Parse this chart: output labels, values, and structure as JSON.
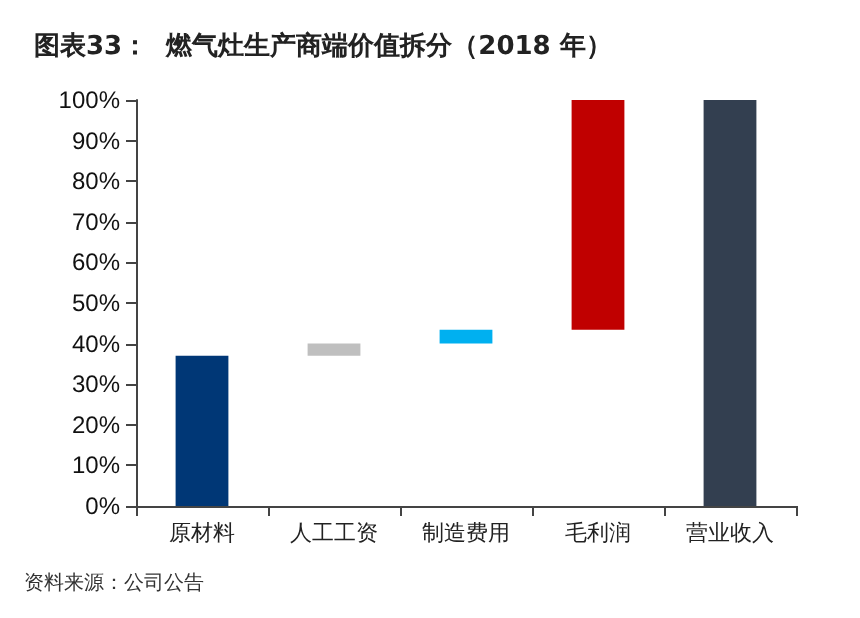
{
  "chart_data": {
    "type": "bar",
    "title": "图表33：  燃气灶生产商端价值拆分（2018 年）",
    "categories": [
      "原材料",
      "人工工资",
      "制造费用",
      "毛利润",
      "营业收入"
    ],
    "values": [
      37,
      3,
      3.4,
      56.6,
      100
    ],
    "base": [
      0,
      37,
      40,
      43.4,
      0
    ],
    "colors": [
      "#003776",
      "#bfbfbf",
      "#00b0f0",
      "#c00000",
      "#333f50"
    ],
    "ylim": [
      0,
      100
    ],
    "yticks": [
      {
        "value": 0,
        "label": "0%"
      },
      {
        "value": 10,
        "label": "10%"
      },
      {
        "value": 20,
        "label": "20%"
      },
      {
        "value": 30,
        "label": "30%"
      },
      {
        "value": 40,
        "label": "40%"
      },
      {
        "value": 50,
        "label": "50%"
      },
      {
        "value": 60,
        "label": "60%"
      },
      {
        "value": 70,
        "label": "70%"
      },
      {
        "value": 80,
        "label": "80%"
      },
      {
        "value": 90,
        "label": "90%"
      },
      {
        "value": 100,
        "label": "100%"
      }
    ],
    "grid": false,
    "annotations": [
      "资料来源：公司公告"
    ]
  }
}
